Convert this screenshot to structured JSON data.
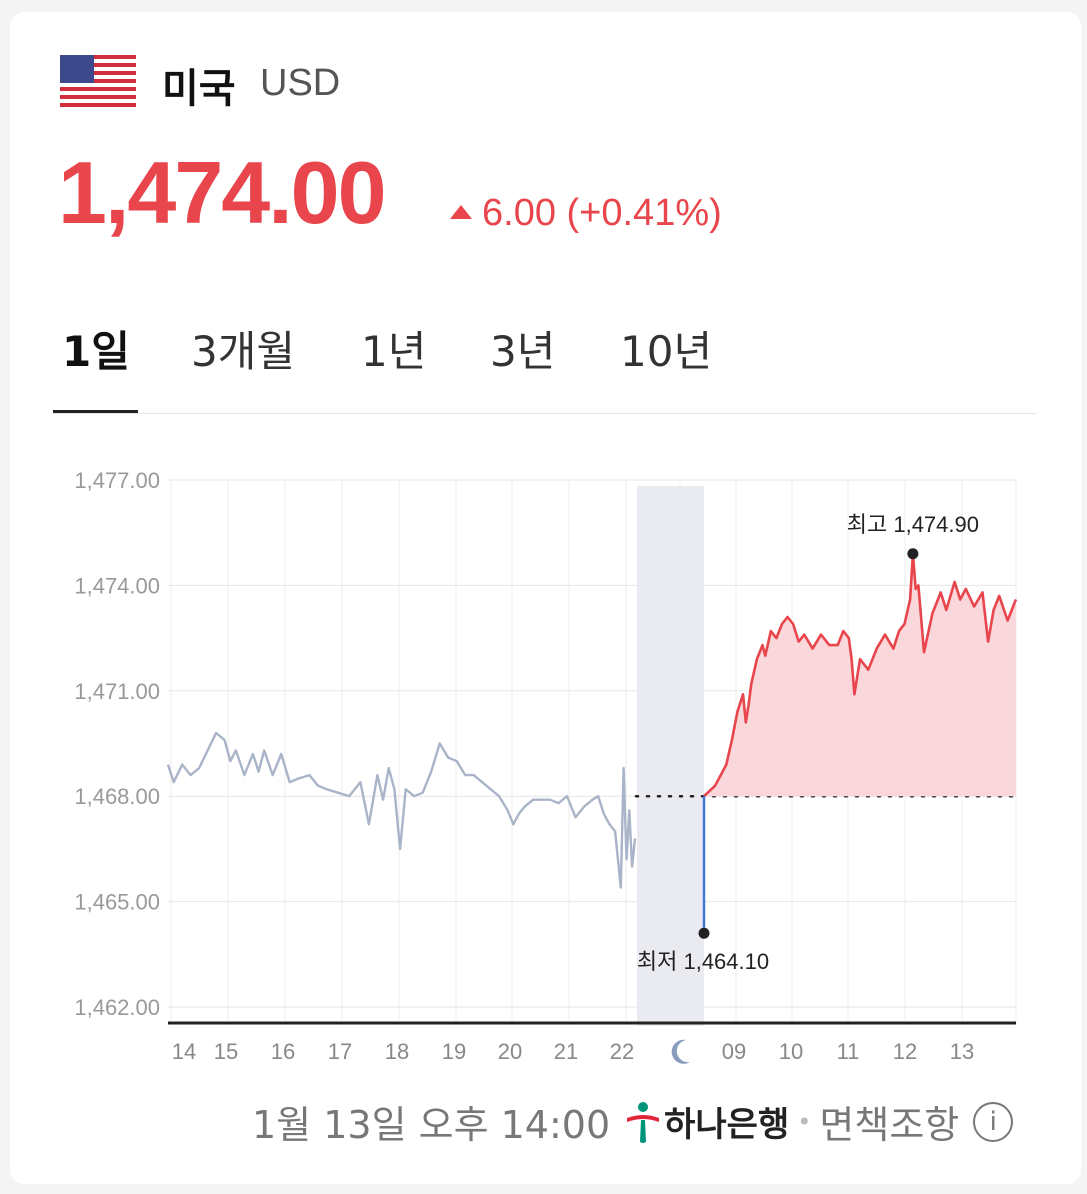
{
  "header": {
    "country": "미국",
    "currency_code": "USD",
    "flag_icon": "us-flag-icon"
  },
  "quote": {
    "price": "1,474.00",
    "change": "6.00 (+0.41%)",
    "direction": "up",
    "color": "#e8454c"
  },
  "tabs": [
    {
      "label": "1일",
      "active": true
    },
    {
      "label": "3개월",
      "active": false
    },
    {
      "label": "1년",
      "active": false
    },
    {
      "label": "3년",
      "active": false
    },
    {
      "label": "10년",
      "active": false
    }
  ],
  "chart_data": {
    "type": "line",
    "title": "",
    "ylim": [
      1462,
      1477
    ],
    "y_ticks": [
      "1,477.00",
      "1,474.00",
      "1,471.00",
      "1,468.00",
      "1,465.00",
      "1,462.00"
    ],
    "x_ticks": [
      "14",
      "15",
      "16",
      "17",
      "18",
      "19",
      "20",
      "21",
      "22",
      "moon-icon",
      "09",
      "10",
      "11",
      "12",
      "13"
    ],
    "baseline": 1468.0,
    "series": [
      {
        "session": "previous",
        "color": "#a9b4c8",
        "x": [
          14.0,
          14.1,
          14.25,
          14.4,
          14.55,
          14.7,
          14.85,
          15.0,
          15.1,
          15.2,
          15.35,
          15.5,
          15.6,
          15.7,
          15.85,
          16.0,
          16.15,
          16.3,
          16.5,
          16.65,
          16.8,
          17.0,
          17.2,
          17.4,
          17.55,
          17.7,
          17.8,
          17.9,
          18.0,
          18.1,
          18.2,
          18.35,
          18.5,
          18.65,
          18.8,
          18.95,
          19.1,
          19.25,
          19.4,
          19.55,
          19.7,
          19.85,
          20.0,
          20.1,
          20.2,
          20.3,
          20.45,
          20.6,
          20.75,
          20.9,
          21.05,
          21.2,
          21.35,
          21.5,
          21.6,
          21.7,
          21.8,
          21.9,
          22.0,
          22.05,
          22.1,
          22.15,
          22.2,
          22.25
        ],
        "values": [
          1468.9,
          1468.4,
          1468.9,
          1468.6,
          1468.8,
          1469.3,
          1469.8,
          1469.6,
          1469.0,
          1469.3,
          1468.6,
          1469.2,
          1468.7,
          1469.3,
          1468.6,
          1469.2,
          1468.4,
          1468.5,
          1468.6,
          1468.3,
          1468.2,
          1468.1,
          1468.0,
          1468.4,
          1467.2,
          1468.6,
          1467.9,
          1468.8,
          1468.2,
          1466.5,
          1468.2,
          1468.0,
          1468.1,
          1468.7,
          1469.5,
          1469.1,
          1469.0,
          1468.6,
          1468.6,
          1468.4,
          1468.2,
          1468.0,
          1467.6,
          1467.2,
          1467.5,
          1467.7,
          1467.9,
          1467.9,
          1467.9,
          1467.8,
          1468.0,
          1467.4,
          1467.7,
          1467.9,
          1468.0,
          1467.5,
          1467.2,
          1467.0,
          1465.4,
          1468.8,
          1466.2,
          1467.6,
          1466.0,
          1466.8
        ]
      },
      {
        "session": "current",
        "color": "#e8454c",
        "x": [
          8.4,
          8.6,
          8.8,
          8.9,
          9.0,
          9.1,
          9.15,
          9.2,
          9.25,
          9.35,
          9.45,
          9.5,
          9.6,
          9.7,
          9.8,
          9.9,
          10.0,
          10.1,
          10.2,
          10.35,
          10.5,
          10.65,
          10.8,
          10.9,
          11.0,
          11.05,
          11.1,
          11.2,
          11.35,
          11.5,
          11.65,
          11.8,
          11.9,
          12.0,
          12.1,
          12.15,
          12.2,
          12.25,
          12.35,
          12.5,
          12.65,
          12.75,
          12.9,
          13.0,
          13.1,
          13.25,
          13.4,
          13.5,
          13.6,
          13.7,
          13.85,
          14.0
        ],
        "values": [
          1468.0,
          1468.3,
          1468.9,
          1469.6,
          1470.4,
          1470.9,
          1470.1,
          1470.6,
          1471.2,
          1471.9,
          1472.3,
          1472.0,
          1472.7,
          1472.5,
          1472.9,
          1473.1,
          1472.9,
          1472.4,
          1472.6,
          1472.2,
          1472.6,
          1472.3,
          1472.3,
          1472.7,
          1472.5,
          1471.9,
          1470.9,
          1471.9,
          1471.6,
          1472.2,
          1472.6,
          1472.2,
          1472.7,
          1472.9,
          1473.6,
          1474.9,
          1473.9,
          1474.0,
          1472.1,
          1473.2,
          1473.8,
          1473.3,
          1474.1,
          1473.6,
          1473.9,
          1473.4,
          1473.8,
          1472.4,
          1473.3,
          1473.7,
          1473.0,
          1473.6
        ]
      }
    ],
    "annotations": [
      {
        "label": "최고 1,474.90",
        "value": 1474.9
      },
      {
        "label": "최저 1,464.10",
        "value": 1464.1
      }
    ],
    "grid": true
  },
  "footer": {
    "timestamp": "1월 13일 오후 14:00",
    "bank": "하나은행",
    "disclaimer": "면책조항",
    "info_icon": "info-icon"
  }
}
